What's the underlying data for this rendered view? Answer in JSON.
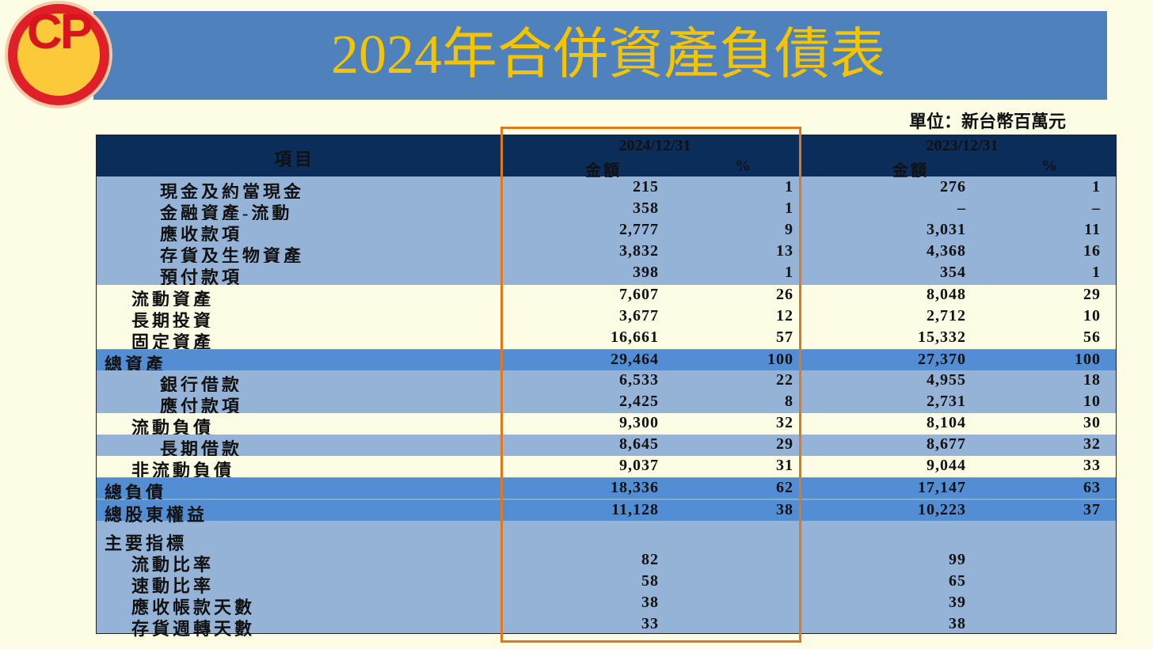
{
  "logo": "CP",
  "title": "2024年合併資產負債表",
  "unit": "單位：新台幣百萬元",
  "table": {
    "header": {
      "item": "項目",
      "dates": [
        "2024/12/31",
        "2023/12/31"
      ],
      "columns": [
        "金額",
        "%",
        "金額",
        "%"
      ]
    },
    "rows": [
      [
        "現金及約當現金",
        "215",
        "1",
        "276",
        "1"
      ],
      [
        "金融資產-流動",
        "358",
        "1",
        "–",
        "–"
      ],
      [
        "應收款項",
        "2,777",
        "9",
        "3,031",
        "11"
      ],
      [
        "存貨及生物資產",
        "3,832",
        "13",
        "4,368",
        "16"
      ],
      [
        "預付款項",
        "398",
        "1",
        "354",
        "1"
      ],
      [
        "流動資產",
        "7,607",
        "26",
        "8,048",
        "29"
      ],
      [
        "長期投資",
        "3,677",
        "12",
        "2,712",
        "10"
      ],
      [
        "固定資產",
        "16,661",
        "57",
        "15,332",
        "56"
      ],
      [
        "總資產",
        "29,464",
        "100",
        "27,370",
        "100"
      ],
      [
        "銀行借款",
        "6,533",
        "22",
        "4,955",
        "18"
      ],
      [
        "應付款項",
        "2,425",
        "8",
        "2,731",
        "10"
      ],
      [
        "流動負債",
        "9,300",
        "32",
        "8,104",
        "30"
      ],
      [
        "長期借款",
        "8,645",
        "29",
        "8,677",
        "32"
      ],
      [
        "非流動負債",
        "9,037",
        "31",
        "9,044",
        "33"
      ],
      [
        "總負債",
        "18,336",
        "62",
        "17,147",
        "63"
      ],
      [
        "總股東權益",
        "11,128",
        "38",
        "10,223",
        "37"
      ],
      [
        "主要指標"
      ],
      [
        "流動比率",
        "82",
        "99"
      ],
      [
        "速動比率",
        "58",
        "65"
      ],
      [
        "應收帳款天數",
        "38",
        "39"
      ],
      [
        "存貨週轉天數",
        "33",
        "38"
      ]
    ]
  }
}
